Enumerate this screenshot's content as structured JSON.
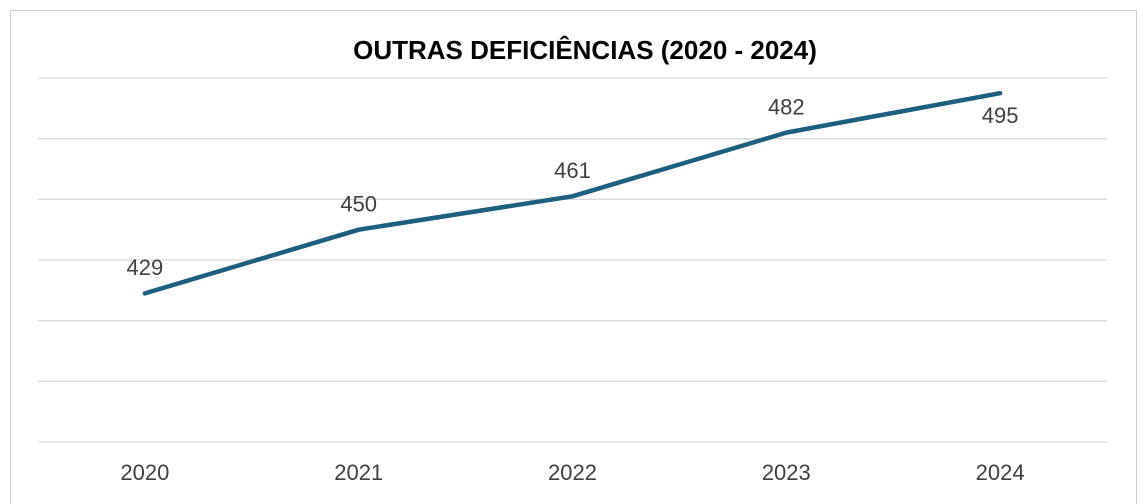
{
  "chart_data": {
    "type": "line",
    "title": "OUTRAS DEFICIÊNCIAS (2020 - 2024)",
    "categories": [
      "2020",
      "2021",
      "2022",
      "2023",
      "2024"
    ],
    "series": [
      {
        "name": "Outras deficiências",
        "color": "#1c5f7e",
        "values": [
          429,
          450,
          461,
          482,
          495
        ]
      }
    ],
    "ylim": [
      380,
      500
    ],
    "yticks": [
      380,
      400,
      420,
      440,
      460,
      480,
      500
    ],
    "grid": true,
    "legend": false
  }
}
